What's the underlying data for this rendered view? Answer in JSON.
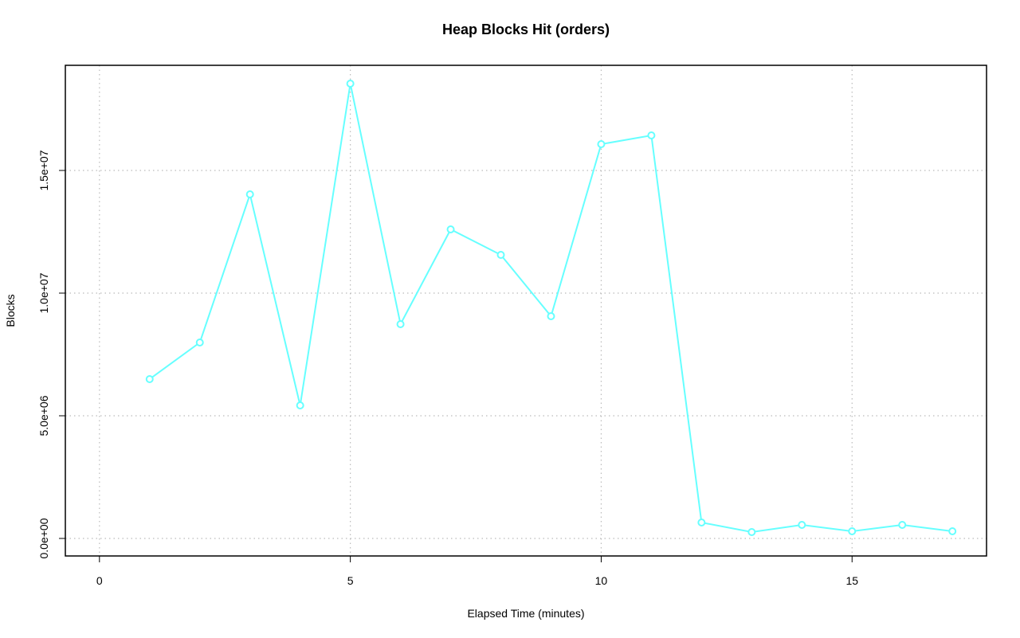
{
  "chart_data": {
    "type": "line",
    "title": "Heap Blocks Hit (orders)",
    "xlabel": "Elapsed Time (minutes)",
    "ylabel": "Blocks",
    "x": [
      1,
      2,
      3,
      4,
      5,
      6,
      7,
      8,
      9,
      10,
      11,
      12,
      13,
      14,
      15,
      16,
      17
    ],
    "values": [
      6494000,
      7987000,
      14026000,
      5422000,
      18539000,
      8734000,
      12597000,
      11558000,
      9058000,
      16071000,
      16429000,
      649000,
      260000,
      552000,
      292000,
      552000,
      292000
    ],
    "color": "#66ffff",
    "xlim": [
      -0.68,
      17.68
    ],
    "xticks": [
      0,
      5,
      10,
      15
    ],
    "ylim": [
      -714000,
      19286000
    ],
    "yticks": [
      {
        "value": 0,
        "label": "0.0e+00"
      },
      {
        "value": 5000000,
        "label": "5.0e+06"
      },
      {
        "value": 10000000,
        "label": "1.0e+07"
      },
      {
        "value": 15000000,
        "label": "1.5e+07"
      }
    ],
    "grid": true
  }
}
